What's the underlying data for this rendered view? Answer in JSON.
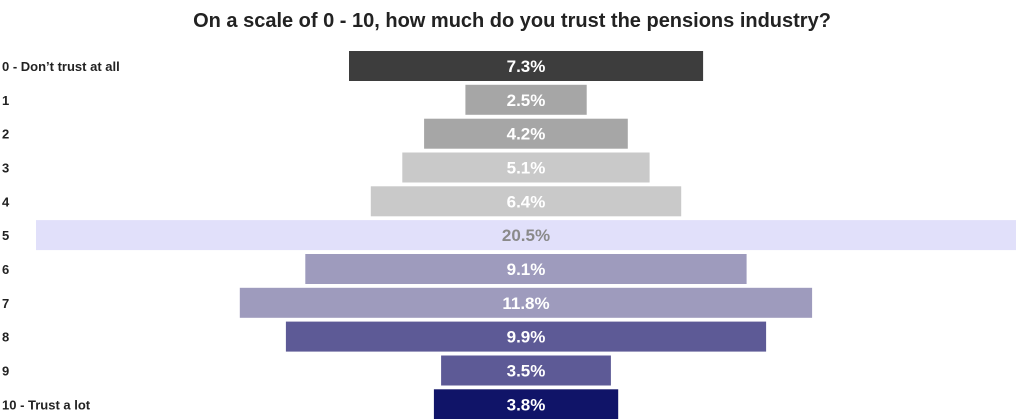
{
  "chart_data": {
    "type": "bar",
    "orientation": "horizontal-centered",
    "title": "On a scale of 0 - 10, how much do you trust the pensions industry?",
    "xlabel": "",
    "ylabel": "",
    "grid": false,
    "legend": "none",
    "unit": "%",
    "categories": [
      "0 - Don’t trust at all",
      "1",
      "2",
      "3",
      "4",
      "5",
      "6",
      "7",
      "8",
      "9",
      "10 - Trust a lot"
    ],
    "values": [
      7.3,
      2.5,
      4.2,
      5.1,
      6.4,
      20.5,
      9.1,
      11.8,
      9.9,
      3.5,
      3.8
    ],
    "labels": [
      "7.3%",
      "2.5%",
      "4.2%",
      "5.1%",
      "6.4%",
      "20.5%",
      "9.1%",
      "11.8%",
      "9.9%",
      "3.5%",
      "3.8%"
    ],
    "colors": [
      "#3d3d3d",
      "#a6a6a6",
      "#a6a6a6",
      "#c9c9c9",
      "#c9c9c9",
      "#e1e0fa",
      "#9e9bbd",
      "#9e9bbd",
      "#5d5a96",
      "#5d5a96",
      "#101468"
    ],
    "label_colors": [
      "#ffffff",
      "#ffffff",
      "#ffffff",
      "#ffffff",
      "#ffffff",
      "#8a8a8a",
      "#ffffff",
      "#ffffff",
      "#ffffff",
      "#ffffff",
      "#ffffff"
    ]
  }
}
